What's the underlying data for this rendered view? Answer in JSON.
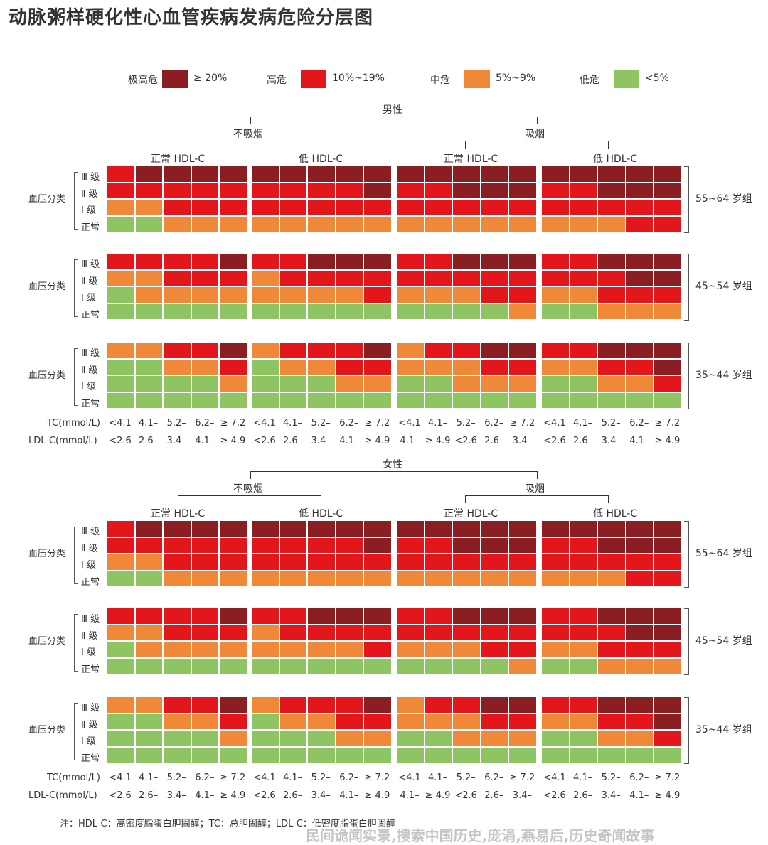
{
  "title": "动脉粥样硬化性心血管疾病发病危险分层图",
  "colors": {
    "very_high": "#8b1e22",
    "high": "#e2161b",
    "medium": "#f0883a",
    "low": "#8fc463"
  },
  "legend": [
    {
      "label": "极高危",
      "range": "≥ 20%",
      "level": "very_high"
    },
    {
      "label": "高危",
      "range": "10%~19%",
      "level": "high"
    },
    {
      "label": "中危",
      "range": "5%~9%",
      "level": "medium"
    },
    {
      "label": "低危",
      "range": "<5%",
      "level": "low"
    }
  ],
  "sections": [
    {
      "sex": "男性",
      "nonsmoke": "不吸烟",
      "smoke": "吸烟",
      "hdl_normal": "正常 HDL-C",
      "hdl_low": "低 HDL-C",
      "age_groups": [
        {
          "label": "55~64 岁组",
          "y_label": "血压分类"
        },
        {
          "label": "45~54 岁组",
          "y_label": "血压分类"
        },
        {
          "label": "35~44 岁组",
          "y_label": "血压分类"
        }
      ]
    },
    {
      "sex": "女性",
      "nonsmoke": "不吸烟",
      "smoke": "吸烟",
      "hdl_normal": "正常 HDL-C",
      "hdl_low": "低 HDL-C",
      "age_groups": [
        {
          "label": "55~64 岁组",
          "y_label": "血压分类"
        },
        {
          "label": "45~54 岁组",
          "y_label": "血压分类"
        },
        {
          "label": "35~44 岁组",
          "y_label": "血压分类"
        }
      ]
    }
  ],
  "bp_categories": [
    "Ⅲ 级",
    "Ⅱ 级",
    "Ⅰ 级",
    "正常"
  ],
  "tc_label": "TC(mmol/L)",
  "ldl_label": "LDL-C(mmol/L)",
  "tc_ticks": [
    "<4.1",
    "4.1–",
    "5.2–",
    "6.2–",
    "≥ 7.2"
  ],
  "ldl_ticks_normal": [
    "<2.6",
    "2.6–",
    "3.4–",
    "4.1–",
    "≥ 4.9"
  ],
  "ldl_ticks_shift": [
    "4.1–",
    "≥ 4.9",
    "<2.6",
    "2.6–",
    "3.4–"
  ],
  "note": "注：HDL-C：高密度脂蛋白胆固醇；TC：总胆固醇；LDL-C：低密度脂蛋白胆固醇",
  "watermark": "民间诡闻实录,搜索中国历史,庞涓,燕易后,历史奇闻故事",
  "chart_data": {
    "type": "heatmap",
    "title": "动脉粥样硬化性心血管疾病发病危险分层图",
    "levels": [
      "very_high",
      "high",
      "medium",
      "low"
    ],
    "level_codes": {
      "V": "very_high",
      "H": "high",
      "M": "medium",
      "L": "low"
    },
    "rows": [
      "Ⅲ 级",
      "Ⅱ 级",
      "Ⅰ 级",
      "正常"
    ],
    "columns": [
      "<4.1",
      "4.1–",
      "5.2–",
      "6.2–",
      "≥ 7.2"
    ],
    "panels_order": [
      "不吸烟 正常 HDL-C",
      "不吸烟 低 HDL-C",
      "吸烟 正常 HDL-C",
      "吸烟 低 HDL-C"
    ],
    "grids": {
      "男性": {
        "55~64 岁组": [
          [
            "HVVVV",
            "VVVVV",
            "VVVVV",
            "VVVVV"
          ],
          [
            "HHHHH",
            "HHHHV",
            "HHVVV",
            "HHVVV"
          ],
          [
            "MMHHH",
            "HHHHH",
            "HHHHH",
            "HHHHH"
          ],
          [
            "LLMMM",
            "MMMMM",
            "MMMMM",
            "MMMHH"
          ]
        ],
        "45~54 岁组": [
          [
            "HHHHV",
            "HHVVV",
            "HHVVV",
            "HHVVV"
          ],
          [
            "MMHHH",
            "MHHHH",
            "HHHHH",
            "HHHVV"
          ],
          [
            "LMMMM",
            "MMMMH",
            "MMMHH",
            "MMHHH"
          ],
          [
            "LLLLL",
            "LLLLL",
            "LLLLM",
            "LLMMM"
          ]
        ],
        "35~44 岁组": [
          [
            "MMHHV",
            "MHHHV",
            "MHHVV",
            "HHVVV"
          ],
          [
            "LLMMH",
            "LMMHH",
            "MMMHH",
            "MMHHV"
          ],
          [
            "LLLLM",
            "LLLMM",
            "LLMMM",
            "LLMMH"
          ],
          [
            "LLLLL",
            "LLLLL",
            "LLLLL",
            "LLLLL"
          ]
        ]
      },
      "女性": {
        "55~64 岁组": [
          [
            "HVVVV",
            "VVVVV",
            "VVVVV",
            "VVVVV"
          ],
          [
            "HHHHH",
            "HHHHV",
            "HHVVV",
            "HHVVV"
          ],
          [
            "MMHHH",
            "HHHHH",
            "HHHHH",
            "HHHHH"
          ],
          [
            "LLMMM",
            "MMMMM",
            "MMMMM",
            "MMMHH"
          ]
        ],
        "45~54 岁组": [
          [
            "HHHHV",
            "HHVVV",
            "HHVVV",
            "HHVVV"
          ],
          [
            "MMHHH",
            "MHHHH",
            "HHHHH",
            "HHHVV"
          ],
          [
            "LMMMM",
            "MMMMH",
            "MMMHH",
            "MMHHH"
          ],
          [
            "LLLLL",
            "LLLLL",
            "LLLLM",
            "LLMMM"
          ]
        ],
        "35~44 岁组": [
          [
            "MMHHV",
            "MHHHV",
            "MHHVV",
            "HHVVV"
          ],
          [
            "LLMMH",
            "LMMHH",
            "MMMHH",
            "MMHHV"
          ],
          [
            "LLLLM",
            "LLLMM",
            "LLMMM",
            "LLMMH"
          ],
          [
            "LLLLL",
            "LLLLL",
            "LLLLL",
            "LLLLL"
          ]
        ]
      }
    }
  }
}
